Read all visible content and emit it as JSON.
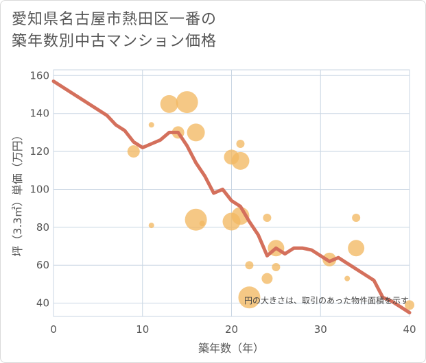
{
  "title": {
    "line1": "愛知県名古屋市熱田区一番の",
    "line2": "築年数別中古マンション価格"
  },
  "chart_data": {
    "type": "scatter",
    "xlabel": "築年数（年）",
    "ylabel": "坪（3.3㎡）単価（万円）",
    "xlim": [
      0,
      40
    ],
    "ylim": [
      33,
      163
    ],
    "x_ticks": [
      0,
      10,
      20,
      30,
      40
    ],
    "y_ticks": [
      40,
      60,
      80,
      100,
      120,
      140,
      160
    ],
    "note": "円の大きさは、取引のあった物件面積を示す",
    "grid": true,
    "colors": {
      "line": "#d4705c",
      "bubble": "#f2b963",
      "grid": "#c9d6e3",
      "plot_bg": "#ffffff"
    },
    "bubbles": [
      {
        "x": 9,
        "y": 120,
        "size": 9
      },
      {
        "x": 11,
        "y": 134,
        "size": 4
      },
      {
        "x": 11,
        "y": 81,
        "size": 4
      },
      {
        "x": 13,
        "y": 145,
        "size": 13
      },
      {
        "x": 14,
        "y": 130,
        "size": 9
      },
      {
        "x": 15,
        "y": 146,
        "size": 16
      },
      {
        "x": 16,
        "y": 130,
        "size": 13
      },
      {
        "x": 16,
        "y": 84,
        "size": 16
      },
      {
        "x": 16.7,
        "y": 82,
        "size": 4
      },
      {
        "x": 20,
        "y": 117,
        "size": 11
      },
      {
        "x": 20,
        "y": 83,
        "size": 13
      },
      {
        "x": 21,
        "y": 124,
        "size": 6
      },
      {
        "x": 21,
        "y": 115,
        "size": 13
      },
      {
        "x": 21,
        "y": 86,
        "size": 13
      },
      {
        "x": 22,
        "y": 60,
        "size": 6
      },
      {
        "x": 22,
        "y": 43,
        "size": 16
      },
      {
        "x": 24,
        "y": 85,
        "size": 6
      },
      {
        "x": 24,
        "y": 53,
        "size": 8
      },
      {
        "x": 25,
        "y": 69,
        "size": 12
      },
      {
        "x": 25,
        "y": 59,
        "size": 6
      },
      {
        "x": 31,
        "y": 63,
        "size": 10
      },
      {
        "x": 33,
        "y": 53,
        "size": 4
      },
      {
        "x": 34,
        "y": 85,
        "size": 6
      },
      {
        "x": 34,
        "y": 69,
        "size": 12
      },
      {
        "x": 40,
        "y": 39,
        "size": 7
      }
    ],
    "line": {
      "x": [
        0,
        2,
        4,
        6,
        7,
        8,
        9,
        10,
        11,
        12,
        13,
        14,
        15,
        16,
        17,
        18,
        19,
        20,
        21,
        22,
        23,
        24,
        25,
        26,
        27,
        28,
        29,
        30,
        31,
        32,
        33,
        34,
        35,
        36,
        37,
        38,
        39,
        40
      ],
      "y": [
        157,
        151,
        145,
        139,
        134,
        131,
        125,
        122,
        124,
        126,
        130,
        130,
        123,
        114,
        107,
        98,
        100,
        94,
        91,
        83,
        76,
        65,
        69,
        66,
        69,
        69,
        68,
        65,
        62,
        64,
        61,
        58,
        55,
        52,
        43,
        41,
        38,
        35
      ]
    }
  }
}
